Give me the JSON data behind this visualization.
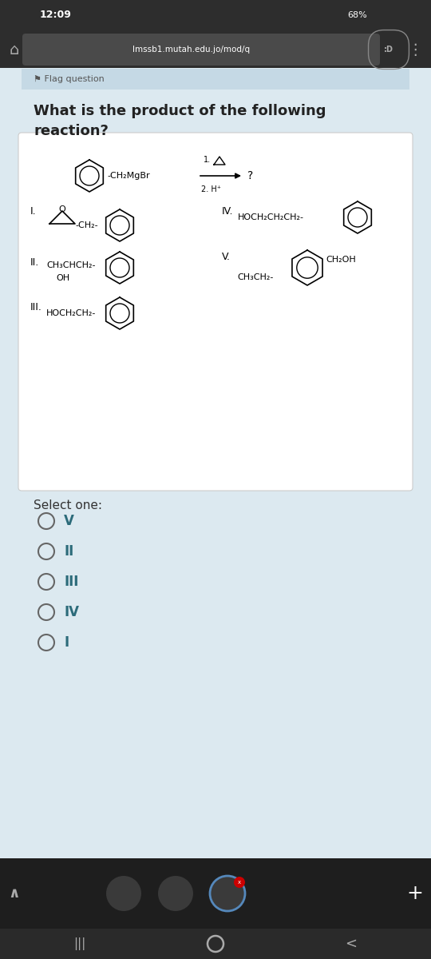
{
  "status_bar_bg": "#2d2d2d",
  "status_bar_text": "#ffffff",
  "status_time": "12:09",
  "status_right": "68%",
  "url_text": "lmssb1.mutah.edu.jo/mod/q",
  "page_bg": "#dce9f0",
  "card_bg": "#ffffff",
  "flag_bar_bg": "#c5d9e5",
  "flag_text": "Flag question",
  "question_text": "What is the product of the following\nreaction?",
  "select_text": "Select one:",
  "options": [
    "V",
    "II",
    "III",
    "IV",
    "I"
  ],
  "text_color": "#2c6b7a",
  "nav_bar_bg": "#1e1e1e",
  "bottom_bar_bg": "#2a2a2a"
}
